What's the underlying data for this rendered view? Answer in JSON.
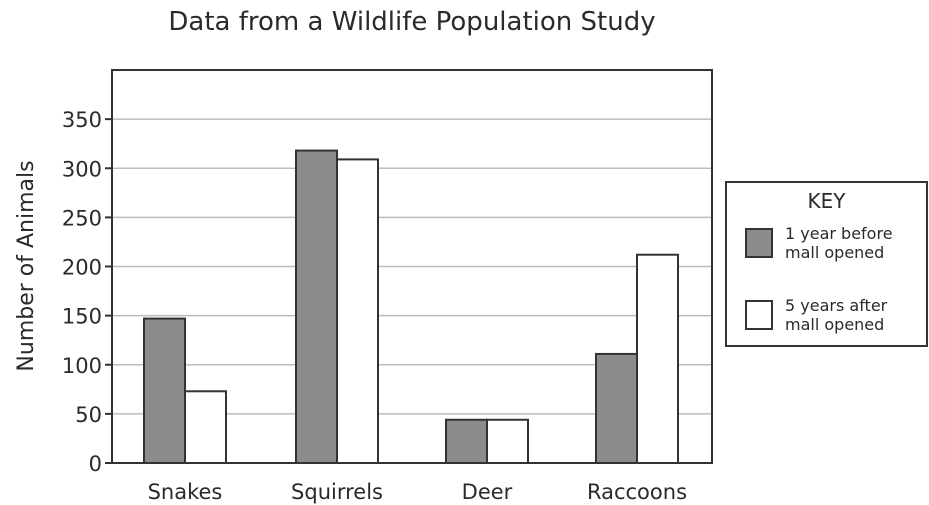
{
  "chart_data": {
    "type": "bar",
    "title": "Data from a Wildlife Population Study",
    "xlabel": "",
    "ylabel": "Number of Animals",
    "categories": [
      "Snakes",
      "Squirrels",
      "Deer",
      "Raccoons"
    ],
    "series": [
      {
        "name": "1 year before mall opened",
        "values": [
          147,
          318,
          44,
          111
        ],
        "color": "#8c8c8c"
      },
      {
        "name": "5 years after mall opened",
        "values": [
          73,
          309,
          44,
          212
        ],
        "color": "#ffffff"
      }
    ],
    "ylim": [
      0,
      400
    ],
    "yticks": [
      0,
      50,
      100,
      150,
      200,
      250,
      300,
      350
    ],
    "grid": true,
    "legend": {
      "title": "KEY",
      "position": "right"
    }
  }
}
